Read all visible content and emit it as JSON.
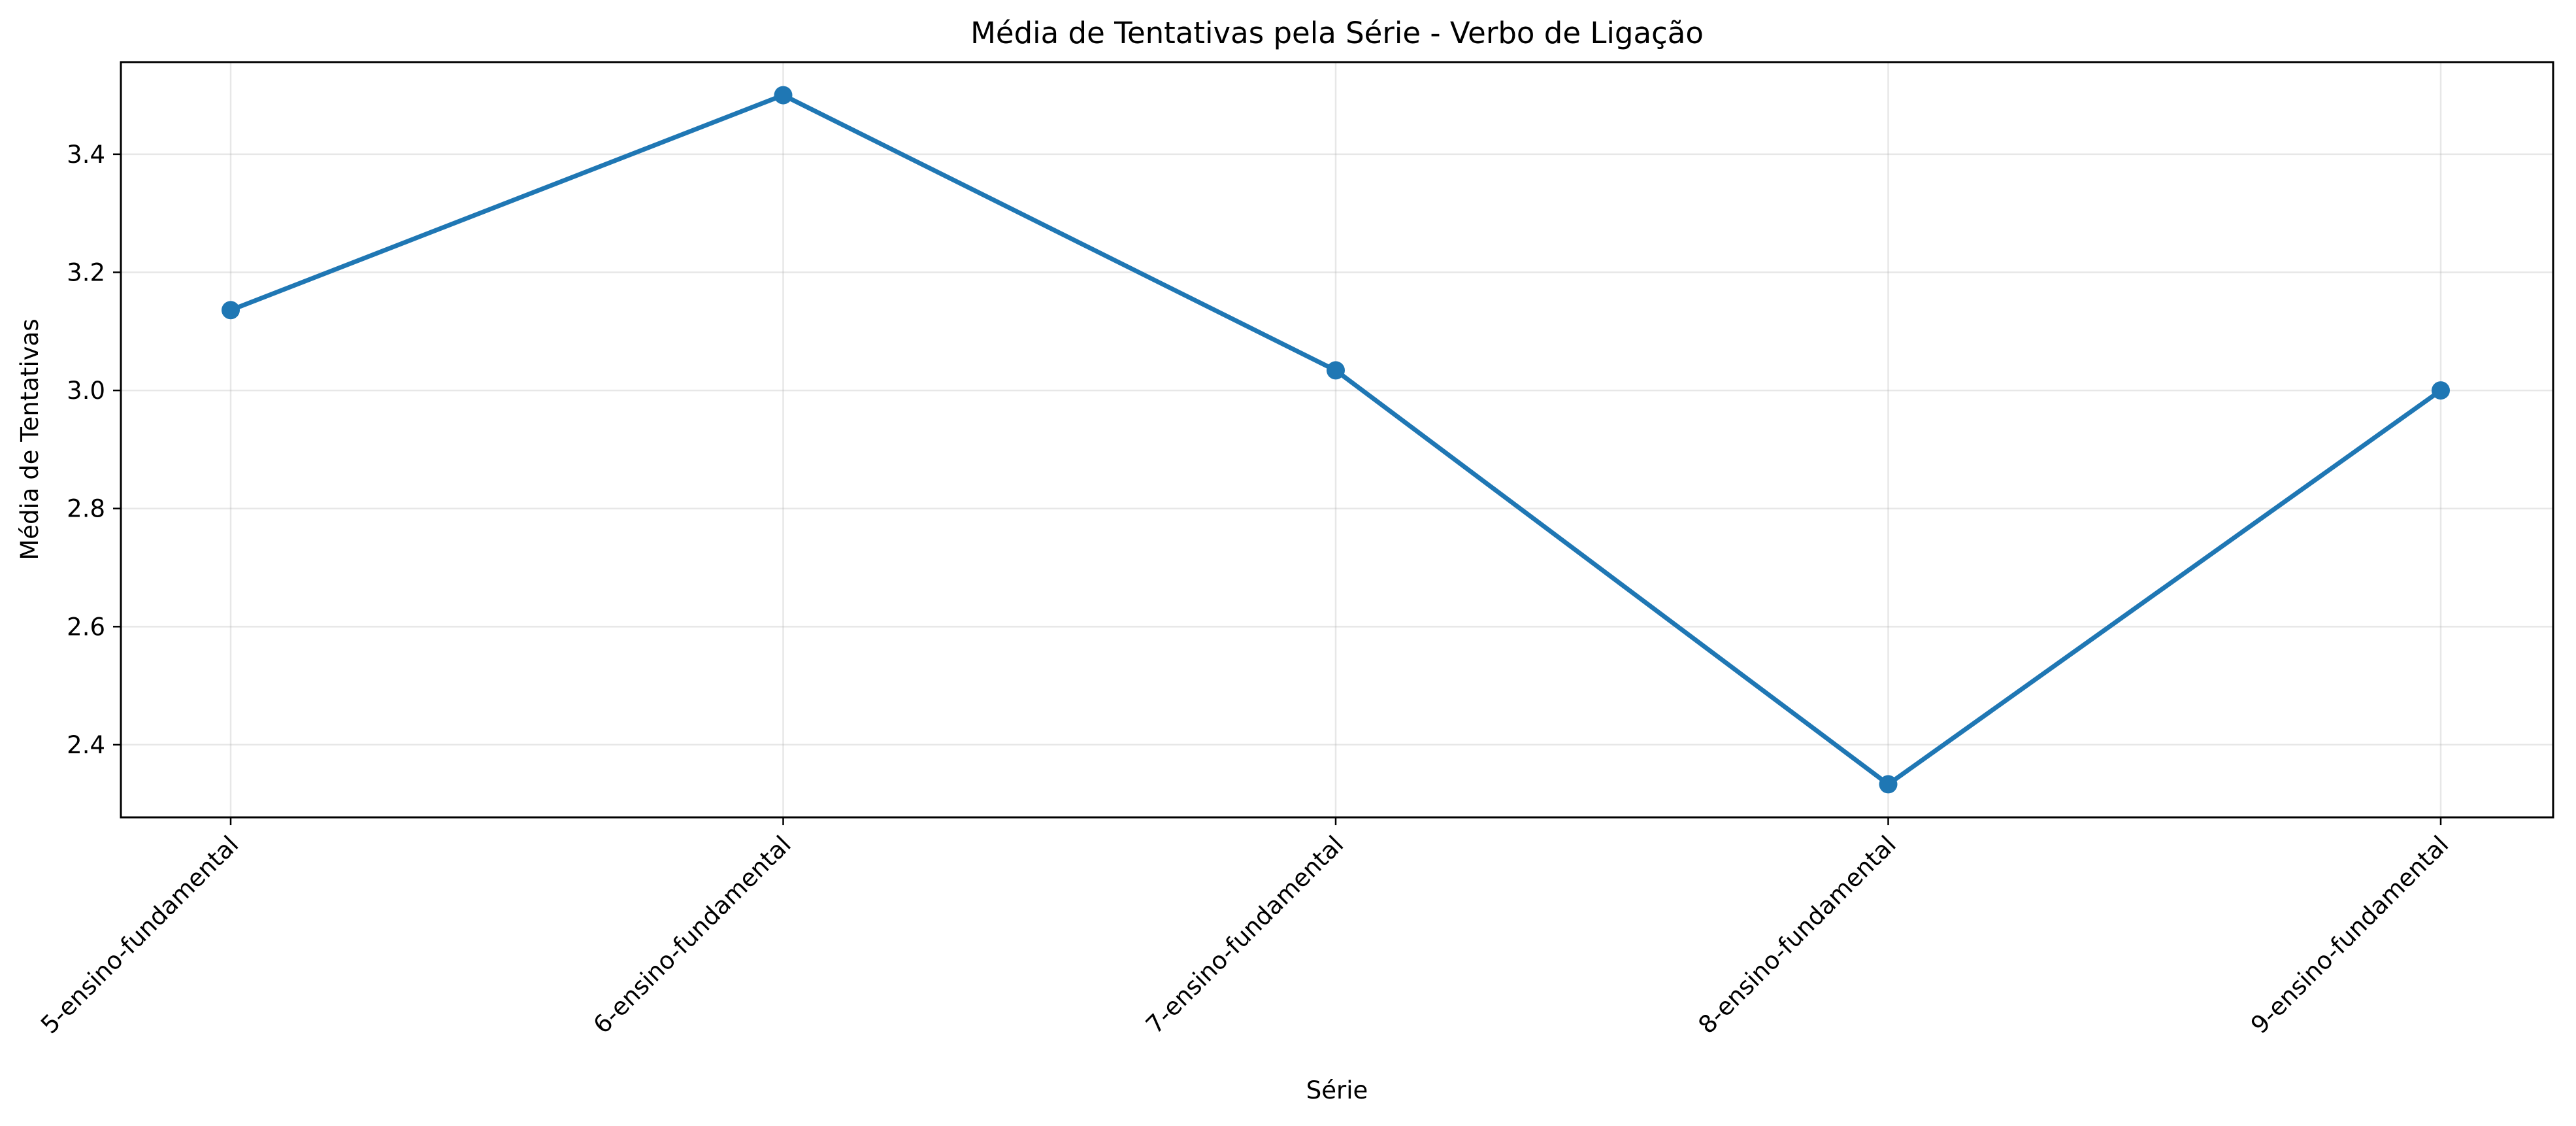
{
  "chart_data": {
    "type": "line",
    "title": "Média de Tentativas pela Série - Verbo de Ligação",
    "xlabel": "Série",
    "ylabel": "Média de Tentativas",
    "categories": [
      "5-ensino-fundamental",
      "6-ensino-fundamental",
      "7-ensino-fundamental",
      "8-ensino-fundamental",
      "9-ensino-fundamental"
    ],
    "series": [
      {
        "values": [
          3.136,
          3.5,
          3.034,
          2.333,
          3.0
        ],
        "color": "#1f77b4"
      }
    ],
    "ylim": [
      2.277,
      3.556
    ],
    "yticks": [
      "2.4",
      "2.6",
      "2.8",
      "3.0",
      "3.2",
      "3.4"
    ],
    "grid": true,
    "marker": "circle"
  }
}
